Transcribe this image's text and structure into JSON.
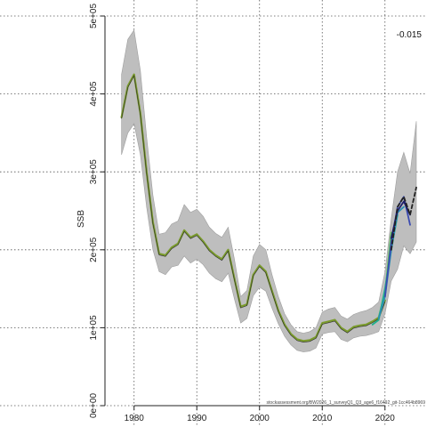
{
  "chart_data": {
    "type": "line",
    "title": "",
    "xlabel": "",
    "ylabel": "SSB",
    "annotation": "-0.015",
    "caption": "stockassessment.org/BW2026_1_surveyQ1_Q3_age6_f16492_git-1cc464b8969",
    "xlim": [
      1975.5,
      2026.7
    ],
    "ylim": [
      0,
      500000
    ],
    "x_ticks": [
      1980,
      1990,
      2000,
      2010,
      2020
    ],
    "x_tick_labels": [
      "1980",
      "1990",
      "2000",
      "2010",
      "2020"
    ],
    "y_ticks": [
      0,
      100000,
      200000,
      300000,
      400000,
      500000
    ],
    "y_tick_labels": [
      "0e+00",
      "1e+05",
      "2e+05",
      "3e+05",
      "4e+05",
      "5e+05"
    ],
    "grid": true,
    "colors": {
      "band": "#bebebe",
      "band_dark": "#9e9e9e",
      "main": "#7a9b2c",
      "retro1": "#1f1f6a",
      "retro2": "#3b4bb0",
      "retro3": "#2a8fb5",
      "retro4": "#1fb08c",
      "retro5": "#5fc35f",
      "dashed": "#222222",
      "grid": "#555555"
    },
    "confidence_band": {
      "x": [
        1978,
        1979,
        1980,
        1981,
        1982,
        1983,
        1984,
        1985,
        1986,
        1987,
        1988,
        1989,
        1990,
        1991,
        1992,
        1993,
        1994,
        1995,
        1996,
        1997,
        1998,
        1999,
        2000,
        2001,
        2002,
        2003,
        2004,
        2005,
        2006,
        2007,
        2008,
        2009,
        2010,
        2011,
        2012,
        2013,
        2014,
        2015,
        2016,
        2017,
        2018,
        2019,
        2020,
        2021,
        2022,
        2023,
        2024,
        2025
      ],
      "lower": [
        322000,
        350000,
        362000,
        322000,
        255000,
        200000,
        172000,
        168000,
        178000,
        180000,
        192000,
        183000,
        188000,
        181000,
        170000,
        163000,
        159000,
        170000,
        137000,
        106000,
        112000,
        141000,
        152000,
        147000,
        125000,
        105000,
        89000,
        78000,
        71000,
        69000,
        70000,
        74000,
        92000,
        94000,
        95000,
        85000,
        82000,
        87000,
        89000,
        90000,
        92000,
        95000,
        118000,
        160000,
        175000,
        205000,
        195000,
        210000
      ],
      "upper": [
        425000,
        470000,
        482000,
        430000,
        345000,
        270000,
        220000,
        222000,
        233000,
        237000,
        258000,
        248000,
        252000,
        243000,
        229000,
        221000,
        216000,
        229000,
        188000,
        140000,
        148000,
        192000,
        207000,
        200000,
        168000,
        140000,
        118000,
        104000,
        95000,
        93000,
        95000,
        100000,
        120000,
        124000,
        126000,
        115000,
        111000,
        117000,
        120000,
        122000,
        126000,
        133000,
        172000,
        240000,
        300000,
        325000,
        298000,
        365000
      ]
    },
    "series": [
      {
        "name": "",
        "color_key": "main",
        "x": [
          1978,
          1979,
          1980,
          1981,
          1982,
          1983,
          1984,
          1985,
          1986,
          1987,
          1988,
          1989,
          1990,
          1991,
          1992,
          1993,
          1994,
          1995,
          1996,
          1997,
          1998,
          1999,
          2000,
          2001,
          2002,
          2003,
          2004,
          2005,
          2006,
          2007,
          2008,
          2009,
          2010,
          2011,
          2012,
          2013,
          2014,
          2015,
          2016,
          2017,
          2018,
          2019,
          2020
        ],
        "values": [
          370000,
          410000,
          425000,
          375000,
          300000,
          235000,
          195000,
          193000,
          203000,
          208000,
          225000,
          216000,
          220000,
          211000,
          200000,
          193000,
          188000,
          200000,
          163000,
          127000,
          130000,
          168000,
          180000,
          172000,
          147000,
          122000,
          104000,
          92000,
          85000,
          83000,
          84000,
          88000,
          106000,
          108000,
          110000,
          100000,
          95000,
          101000,
          103000,
          104000,
          108000,
          113000,
          135000
        ]
      },
      {
        "name": "",
        "color_key": "retro5",
        "x": [
          2019,
          2020,
          2021
        ],
        "values": [
          114000,
          145000,
          222000
        ]
      },
      {
        "name": "",
        "color_key": "retro4",
        "x": [
          2018,
          2019,
          2020,
          2021,
          2022
        ],
        "values": [
          104000,
          110000,
          150000,
          200000,
          245000
        ]
      },
      {
        "name": "",
        "color_key": "retro3",
        "x": [
          2019,
          2020,
          2021,
          2022,
          2023
        ],
        "values": [
          112000,
          140000,
          200000,
          248000,
          255000
        ]
      },
      {
        "name": "",
        "color_key": "retro2",
        "x": [
          2020,
          2021,
          2022,
          2023,
          2024
        ],
        "values": [
          140000,
          210000,
          255000,
          268000,
          232000
        ]
      },
      {
        "name": "",
        "color_key": "retro1",
        "x": [
          2021,
          2022,
          2023,
          2024
        ],
        "values": [
          215000,
          250000,
          262000,
          245000
        ]
      },
      {
        "name": "",
        "color_key": "dashed",
        "style": "dashed",
        "x": [
          2021,
          2022,
          2023,
          2024,
          2025
        ],
        "values": [
          200000,
          255000,
          268000,
          245000,
          280000
        ]
      }
    ]
  }
}
